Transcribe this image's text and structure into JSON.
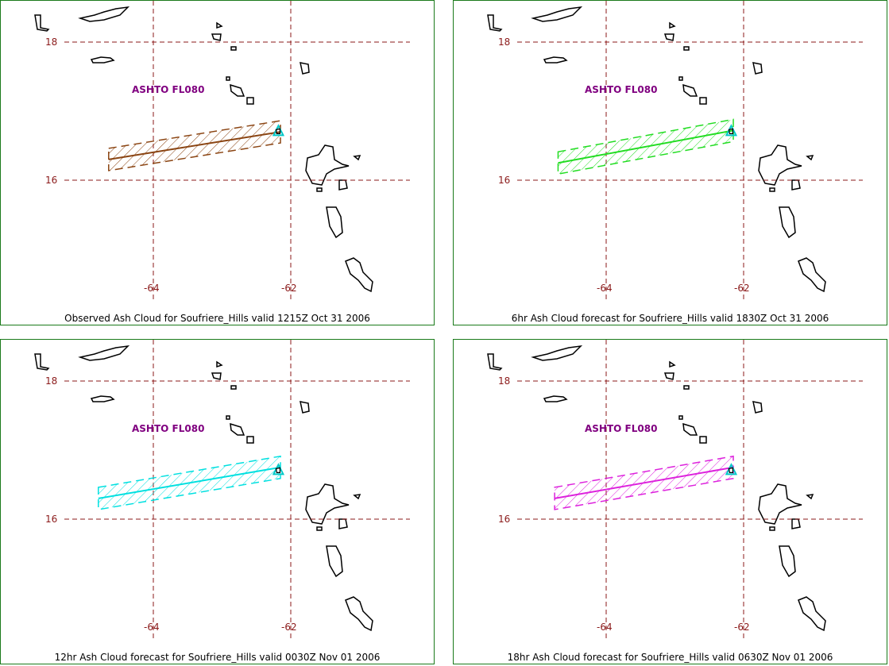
{
  "colors": {
    "grid": "#8b1a1a",
    "label": "#8b1a1a",
    "advisory": "#800080",
    "volcano": "#00c8c8",
    "frame": "#1a7a1a",
    "coast": "#000000"
  },
  "grid": {
    "lat_labels": [
      "18",
      "16"
    ],
    "lon_labels": [
      "-64",
      "-62"
    ]
  },
  "panels": [
    {
      "advisory_label": "ASHTO FL080",
      "caption": "Observed Ash Cloud for Soufriere_Hills valid 1215Z Oct 31 2006",
      "cloud_color": "#8b4513",
      "cloud_region": {
        "from": [
          -64.65,
          16.3
        ],
        "to": [
          -62.15,
          16.7
        ]
      }
    },
    {
      "advisory_label": "ASHTO FL080",
      "caption": "6hr Ash Cloud forecast for Soufriere_Hills valid 1830Z Oct 31 2006",
      "cloud_color": "#22dd22",
      "cloud_region": {
        "from": [
          -64.7,
          16.25
        ],
        "to": [
          -62.15,
          16.72
        ]
      }
    },
    {
      "advisory_label": "ASHTO FL080",
      "caption": "12hr Ash Cloud forecast for Soufriere_Hills valid 0030Z Nov 01 2006",
      "cloud_color": "#00e0e0",
      "cloud_region": {
        "from": [
          -64.8,
          16.3
        ],
        "to": [
          -62.15,
          16.75
        ]
      }
    },
    {
      "advisory_label": "ASHTO FL080",
      "caption": "18hr Ash Cloud forecast for Soufriere_Hills valid 0630Z Nov 01 2006",
      "cloud_color": "#dd22dd",
      "cloud_region": {
        "from": [
          -64.75,
          16.3
        ],
        "to": [
          -62.15,
          16.75
        ]
      }
    }
  ]
}
